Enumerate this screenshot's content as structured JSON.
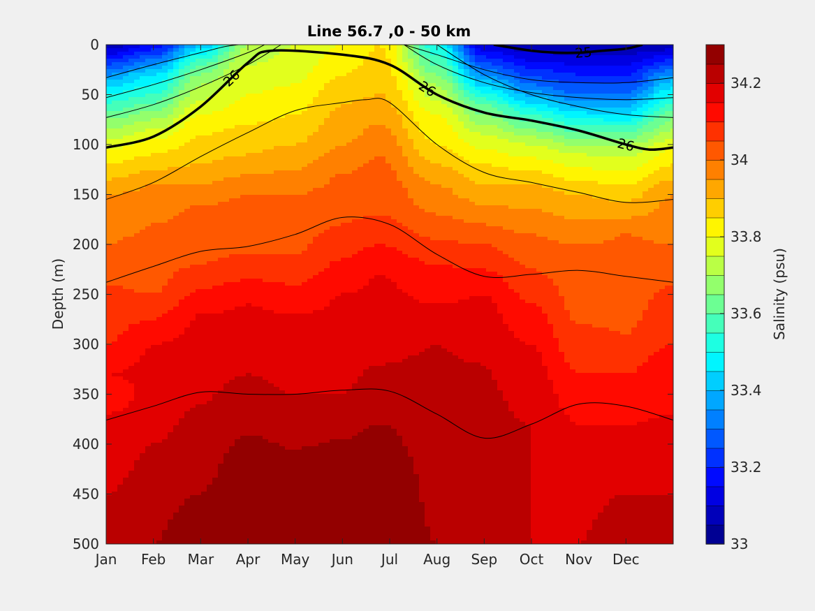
{
  "chart_data": {
    "type": "heatmap",
    "title": "Line 56.7 ,0 - 50 km",
    "xlabel": "",
    "ylabel": "Depth (m)",
    "colorbar_label": "Salinity (psu)",
    "x_ticks": [
      "Jan",
      "Feb",
      "Mar",
      "Apr",
      "May",
      "Jun",
      "Jul",
      "Aug",
      "Sep",
      "Oct",
      "Nov",
      "Dec"
    ],
    "xlim": [
      0,
      12
    ],
    "y_ticks": [
      0,
      50,
      100,
      150,
      200,
      250,
      300,
      350,
      400,
      450,
      500
    ],
    "ylim": [
      0,
      500
    ],
    "y_reversed": true,
    "clim": [
      33.0,
      34.3
    ],
    "colorbar_ticks": [
      33.0,
      33.2,
      33.4,
      33.6,
      33.8,
      34.0,
      34.2
    ],
    "colorbar_tick_labels": [
      "33",
      "33.2",
      "33.4",
      "33.6",
      "33.8",
      "34",
      "34.2"
    ],
    "contour_level_step": 0.05,
    "colormap": "jet",
    "grid": false,
    "contours_labeled": [
      {
        "label": "26",
        "x": [
          0,
          1,
          2,
          3,
          3.5,
          5,
          6,
          7,
          8,
          9,
          10,
          11,
          11.5,
          12
        ],
        "depth": [
          103,
          92,
          62,
          18,
          6,
          10,
          20,
          50,
          68,
          76,
          86,
          100,
          105,
          103
        ]
      },
      {
        "label": "25",
        "x": [
          8.2,
          9,
          9.5,
          10,
          10.5,
          11,
          11.35
        ],
        "depth": [
          0,
          6,
          8,
          8,
          6,
          4,
          0
        ]
      }
    ],
    "contours_unlabeled": [
      {
        "x": [
          0,
          1,
          2,
          3,
          4,
          5,
          5.5,
          6,
          7,
          8,
          9,
          10,
          11,
          12
        ],
        "depth": [
          155,
          138,
          112,
          88,
          66,
          58,
          55,
          58,
          100,
          128,
          138,
          148,
          158,
          155
        ]
      },
      {
        "x": [
          0,
          1,
          2,
          3,
          4,
          5,
          6,
          7,
          8,
          9,
          10,
          11,
          12
        ],
        "depth": [
          238,
          222,
          207,
          202,
          190,
          173,
          180,
          210,
          232,
          230,
          226,
          232,
          238
        ]
      },
      {
        "x": [
          0,
          1,
          2,
          3,
          4,
          5,
          6,
          7,
          8,
          9,
          10,
          11,
          12
        ],
        "depth": [
          376,
          362,
          348,
          350,
          350,
          346,
          347,
          370,
          394,
          380,
          360,
          362,
          376
        ]
      },
      {
        "x": [
          0,
          1,
          2,
          2.5,
          2.8
        ],
        "depth": [
          33,
          20,
          8,
          2,
          0
        ]
      },
      {
        "x": [
          0,
          1,
          2,
          3,
          3.35
        ],
        "depth": [
          53,
          40,
          25,
          8,
          0
        ]
      },
      {
        "x": [
          0,
          1,
          2,
          3,
          3.7
        ],
        "depth": [
          73,
          60,
          42,
          20,
          0
        ]
      },
      {
        "x": [
          6.3,
          7,
          8,
          9,
          10,
          11,
          12
        ],
        "depth": [
          0,
          10,
          25,
          35,
          38,
          38,
          33
        ]
      },
      {
        "x": [
          6.3,
          7,
          8,
          9,
          10,
          11,
          12
        ],
        "depth": [
          0,
          20,
          38,
          48,
          53,
          55,
          53
        ]
      },
      {
        "x": [
          7,
          8,
          9,
          10,
          11,
          12
        ],
        "depth": [
          0,
          30,
          50,
          62,
          70,
          73
        ]
      }
    ],
    "salinity_profiles": [
      {
        "month": 0.0,
        "points": [
          [
            0,
            33.05
          ],
          [
            30,
            33.35
          ],
          [
            50,
            33.5
          ],
          [
            75,
            33.65
          ],
          [
            105,
            33.8
          ],
          [
            120,
            33.85
          ],
          [
            150,
            33.95
          ],
          [
            200,
            34.0
          ],
          [
            240,
            34.05
          ],
          [
            300,
            34.1
          ],
          [
            330,
            34.15
          ],
          [
            350,
            34.1
          ],
          [
            370,
            34.15
          ],
          [
            450,
            34.2
          ],
          [
            500,
            34.25
          ]
        ]
      },
      {
        "month": 1.0,
        "points": [
          [
            0,
            33.15
          ],
          [
            30,
            33.45
          ],
          [
            50,
            33.55
          ],
          [
            75,
            33.7
          ],
          [
            95,
            33.8
          ],
          [
            110,
            33.85
          ],
          [
            140,
            33.95
          ],
          [
            180,
            34.0
          ],
          [
            250,
            34.05
          ],
          [
            300,
            34.15
          ],
          [
            400,
            34.2
          ],
          [
            500,
            34.25
          ]
        ]
      },
      {
        "month": 2.0,
        "points": [
          [
            0,
            33.4
          ],
          [
            20,
            33.6
          ],
          [
            40,
            33.7
          ],
          [
            70,
            33.8
          ],
          [
            90,
            33.85
          ],
          [
            120,
            33.9
          ],
          [
            160,
            34.0
          ],
          [
            220,
            34.05
          ],
          [
            270,
            34.15
          ],
          [
            360,
            34.2
          ],
          [
            450,
            34.25
          ],
          [
            500,
            34.3
          ]
        ]
      },
      {
        "month": 3.0,
        "points": [
          [
            0,
            33.7
          ],
          [
            20,
            33.75
          ],
          [
            50,
            33.8
          ],
          [
            80,
            33.85
          ],
          [
            110,
            33.9
          ],
          [
            150,
            34.0
          ],
          [
            210,
            34.05
          ],
          [
            260,
            34.15
          ],
          [
            330,
            34.2
          ],
          [
            450,
            34.3
          ],
          [
            500,
            34.3
          ]
        ]
      },
      {
        "month": 4.0,
        "points": [
          [
            0,
            33.75
          ],
          [
            40,
            33.8
          ],
          [
            70,
            33.85
          ],
          [
            100,
            33.9
          ],
          [
            150,
            34.0
          ],
          [
            210,
            34.05
          ],
          [
            270,
            34.15
          ],
          [
            350,
            34.2
          ],
          [
            460,
            34.3
          ],
          [
            500,
            34.3
          ]
        ]
      },
      {
        "month": 5.0,
        "points": [
          [
            0,
            33.8
          ],
          [
            30,
            33.85
          ],
          [
            60,
            33.9
          ],
          [
            100,
            33.95
          ],
          [
            130,
            34.0
          ],
          [
            180,
            34.05
          ],
          [
            250,
            34.15
          ],
          [
            350,
            34.2
          ],
          [
            440,
            34.3
          ],
          [
            500,
            34.3
          ]
        ]
      },
      {
        "month": 5.8,
        "points": [
          [
            0,
            33.85
          ],
          [
            50,
            33.9
          ],
          [
            80,
            33.95
          ],
          [
            110,
            34.0
          ],
          [
            170,
            34.05
          ],
          [
            230,
            34.15
          ],
          [
            320,
            34.2
          ],
          [
            440,
            34.3
          ],
          [
            500,
            34.3
          ]
        ]
      },
      {
        "month": 7.0,
        "points": [
          [
            0,
            33.5
          ],
          [
            40,
            33.7
          ],
          [
            70,
            33.8
          ],
          [
            100,
            33.85
          ],
          [
            140,
            33.95
          ],
          [
            170,
            34.0
          ],
          [
            220,
            34.1
          ],
          [
            300,
            34.2
          ],
          [
            500,
            34.25
          ]
        ]
      },
      {
        "month": 8.0,
        "points": [
          [
            0,
            33.1
          ],
          [
            30,
            33.35
          ],
          [
            60,
            33.6
          ],
          [
            90,
            33.75
          ],
          [
            120,
            33.85
          ],
          [
            160,
            33.95
          ],
          [
            200,
            34.05
          ],
          [
            250,
            34.15
          ],
          [
            320,
            34.2
          ],
          [
            500,
            34.25
          ]
        ]
      },
      {
        "month": 9.0,
        "points": [
          [
            0,
            33.05
          ],
          [
            40,
            33.3
          ],
          [
            70,
            33.55
          ],
          [
            100,
            33.75
          ],
          [
            140,
            33.9
          ],
          [
            190,
            34.0
          ],
          [
            260,
            34.1
          ],
          [
            300,
            34.15
          ],
          [
            380,
            34.2
          ],
          [
            500,
            34.2
          ]
        ]
      },
      {
        "month": 10.0,
        "points": [
          [
            0,
            33.05
          ],
          [
            50,
            33.3
          ],
          [
            80,
            33.55
          ],
          [
            110,
            33.75
          ],
          [
            150,
            33.9
          ],
          [
            200,
            34.0
          ],
          [
            280,
            34.05
          ],
          [
            330,
            34.1
          ],
          [
            380,
            34.15
          ],
          [
            500,
            34.2
          ]
        ]
      },
      {
        "month": 11.0,
        "points": [
          [
            0,
            33.05
          ],
          [
            40,
            33.25
          ],
          [
            70,
            33.45
          ],
          [
            100,
            33.7
          ],
          [
            140,
            33.85
          ],
          [
            190,
            34.0
          ],
          [
            290,
            34.05
          ],
          [
            330,
            34.1
          ],
          [
            380,
            34.15
          ],
          [
            450,
            34.2
          ],
          [
            500,
            34.25
          ]
        ]
      },
      {
        "month": 12.0,
        "points": [
          [
            0,
            33.05
          ],
          [
            30,
            33.35
          ],
          [
            50,
            33.5
          ],
          [
            75,
            33.65
          ],
          [
            105,
            33.8
          ],
          [
            120,
            33.85
          ],
          [
            150,
            33.95
          ],
          [
            200,
            34.0
          ],
          [
            240,
            34.05
          ],
          [
            300,
            34.1
          ],
          [
            330,
            34.15
          ],
          [
            350,
            34.1
          ],
          [
            370,
            34.15
          ],
          [
            450,
            34.2
          ],
          [
            500,
            34.25
          ]
        ]
      }
    ]
  }
}
